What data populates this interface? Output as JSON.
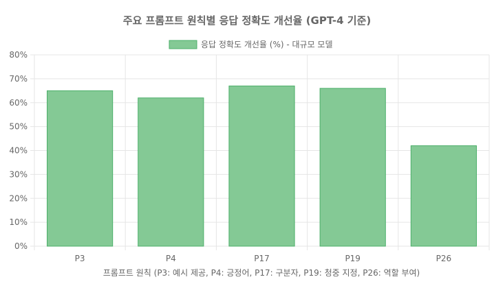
{
  "chart_data": {
    "type": "bar",
    "title": "주요 프롬프트 원칙별 응답 정확도 개선율 (GPT-4 기준)",
    "xlabel": "프롬프트 원칙 (P3: 예시 제공, P4: 긍정어, P17: 구분자, P19: 청중 지정, P26: 역할 부여)",
    "ylabel": "",
    "categories": [
      "P3",
      "P4",
      "P17",
      "P19",
      "P26"
    ],
    "series": [
      {
        "name": "응답 정확도 개선율 (%) - 대규모 모델",
        "values": [
          65,
          62,
          67,
          66,
          42
        ]
      }
    ],
    "ylim": [
      0,
      80
    ],
    "yticks": [
      0,
      10,
      20,
      30,
      40,
      50,
      60,
      70,
      80
    ],
    "ytick_suffix": "%",
    "grid": true,
    "legend": "top-center",
    "colors": {
      "bar_fill": "#84c995",
      "bar_stroke": "#4caf6a",
      "grid": "#e5e5e5",
      "text": "#666666"
    }
  }
}
